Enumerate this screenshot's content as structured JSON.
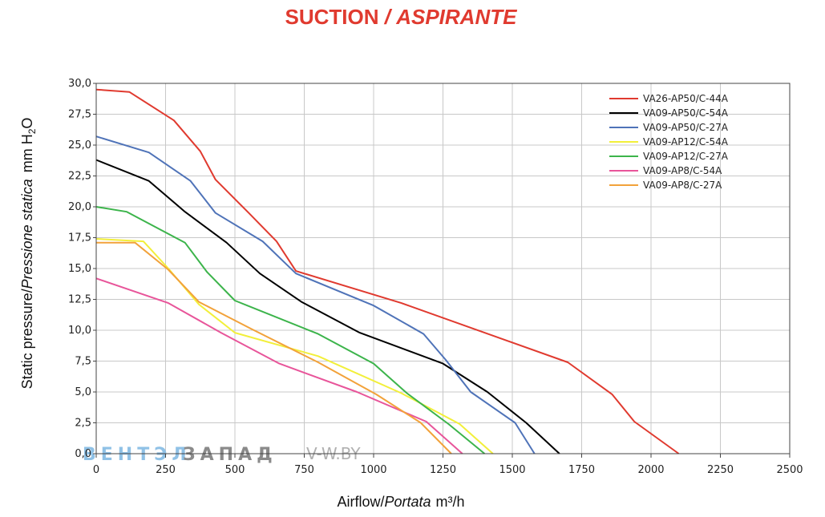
{
  "title": {
    "main": "SUCTION",
    "separator": "/",
    "italic": "ASPIRANTE"
  },
  "watermark": {
    "part1": "ВЕНТЭЛ",
    "part2": "ЗАПАД",
    "part3": "V-W.BY"
  },
  "colors": {
    "title": "#e03a2f",
    "grid": "#c8c8c8",
    "axis": "#444444"
  },
  "chart_data": {
    "type": "line",
    "title": "SUCTION / ASPIRANTE",
    "xlabel": {
      "main": "Airflow",
      "sep": "/",
      "italic": "Portata",
      "unit": "m³/h"
    },
    "ylabel": {
      "main": "Static pressure",
      "sep": "/",
      "italic": "Pressione statica",
      "unit": "mm H",
      "sub": "2",
      "tail": "O"
    },
    "xlim": [
      0,
      2500
    ],
    "ylim": [
      0,
      30
    ],
    "xticks": [
      0,
      250,
      500,
      750,
      1000,
      1250,
      1500,
      1750,
      2000,
      2250,
      2500
    ],
    "xtick_labels": [
      "0",
      "250",
      "500",
      "750",
      "1000",
      "1250",
      "1500",
      "1750",
      "2000",
      "2250",
      "2500"
    ],
    "yticks": [
      0,
      2.5,
      5,
      7.5,
      10,
      12.5,
      15,
      17.5,
      20,
      22.5,
      25,
      27.5,
      30
    ],
    "ytick_labels": [
      "0,0",
      "2,5",
      "5,0",
      "7,5",
      "10,0",
      "12,5",
      "15,0",
      "17,5",
      "20,0",
      "22,5",
      "25,0",
      "27,5",
      "30,0"
    ],
    "grid": true,
    "legend_position": "top-right",
    "series": [
      {
        "name": "VA26-AP50/C-44A",
        "color": "#e03a2f",
        "points": [
          [
            0,
            29.5
          ],
          [
            120,
            29.3
          ],
          [
            280,
            27.0
          ],
          [
            375,
            24.5
          ],
          [
            430,
            22.2
          ],
          [
            550,
            19.5
          ],
          [
            650,
            17.2
          ],
          [
            720,
            14.8
          ],
          [
            1100,
            12.2
          ],
          [
            1700,
            7.4
          ],
          [
            1860,
            4.8
          ],
          [
            1940,
            2.6
          ],
          [
            2100,
            0
          ]
        ]
      },
      {
        "name": "VA09-AP50/C-54A",
        "color": "#000000",
        "points": [
          [
            0,
            23.8
          ],
          [
            190,
            22.1
          ],
          [
            320,
            19.6
          ],
          [
            470,
            17.1
          ],
          [
            590,
            14.6
          ],
          [
            740,
            12.3
          ],
          [
            950,
            9.8
          ],
          [
            1250,
            7.3
          ],
          [
            1410,
            5.0
          ],
          [
            1550,
            2.5
          ],
          [
            1670,
            0
          ]
        ]
      },
      {
        "name": "VA09-AP50/C-27A",
        "color": "#4f73b8",
        "points": [
          [
            0,
            25.7
          ],
          [
            190,
            24.4
          ],
          [
            340,
            22.1
          ],
          [
            430,
            19.5
          ],
          [
            600,
            17.2
          ],
          [
            720,
            14.6
          ],
          [
            1000,
            12.0
          ],
          [
            1180,
            9.7
          ],
          [
            1260,
            7.6
          ],
          [
            1350,
            5.0
          ],
          [
            1510,
            2.5
          ],
          [
            1580,
            0
          ]
        ]
      },
      {
        "name": "VA09-AP12/C-54A",
        "color": "#f2ef3a",
        "points": [
          [
            0,
            17.4
          ],
          [
            170,
            17.2
          ],
          [
            260,
            15.0
          ],
          [
            370,
            12.1
          ],
          [
            500,
            9.8
          ],
          [
            800,
            7.9
          ],
          [
            1100,
            4.9
          ],
          [
            1310,
            2.4
          ],
          [
            1430,
            0
          ]
        ]
      },
      {
        "name": "VA09-AP12/C-27A",
        "color": "#3cb44b",
        "points": [
          [
            0,
            20.0
          ],
          [
            110,
            19.6
          ],
          [
            320,
            17.1
          ],
          [
            400,
            14.7
          ],
          [
            500,
            12.4
          ],
          [
            800,
            9.7
          ],
          [
            1000,
            7.3
          ],
          [
            1120,
            4.9
          ],
          [
            1270,
            2.4
          ],
          [
            1400,
            0
          ]
        ]
      },
      {
        "name": "VA09-AP8/C-54A",
        "color": "#e8559a",
        "points": [
          [
            0,
            14.2
          ],
          [
            260,
            12.2
          ],
          [
            450,
            9.8
          ],
          [
            660,
            7.3
          ],
          [
            940,
            5.0
          ],
          [
            1190,
            2.6
          ],
          [
            1320,
            0
          ]
        ]
      },
      {
        "name": "VA09-AP8/C-27A",
        "color": "#f2a23a",
        "points": [
          [
            0,
            17.1
          ],
          [
            140,
            17.1
          ],
          [
            260,
            14.9
          ],
          [
            370,
            12.3
          ],
          [
            560,
            10.1
          ],
          [
            800,
            7.4
          ],
          [
            1010,
            4.8
          ],
          [
            1170,
            2.5
          ],
          [
            1280,
            0
          ]
        ]
      }
    ]
  }
}
